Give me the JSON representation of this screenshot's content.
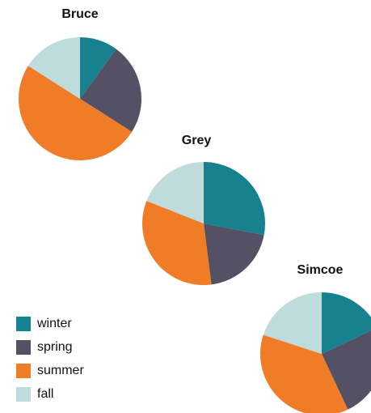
{
  "legend": {
    "categories": [
      "winter",
      "spring",
      "summer",
      "fall"
    ],
    "colors": [
      "#17818f",
      "#535163",
      "#f07c28",
      "#bfdcdc"
    ]
  },
  "chart_data": [
    {
      "type": "pie",
      "title": "Bruce",
      "values": [
        10,
        24,
        50,
        16
      ]
    },
    {
      "type": "pie",
      "title": "Grey",
      "values": [
        28,
        20,
        33,
        19
      ]
    },
    {
      "type": "pie",
      "title": "Simcoe",
      "values": [
        18,
        25,
        37,
        20
      ]
    }
  ]
}
